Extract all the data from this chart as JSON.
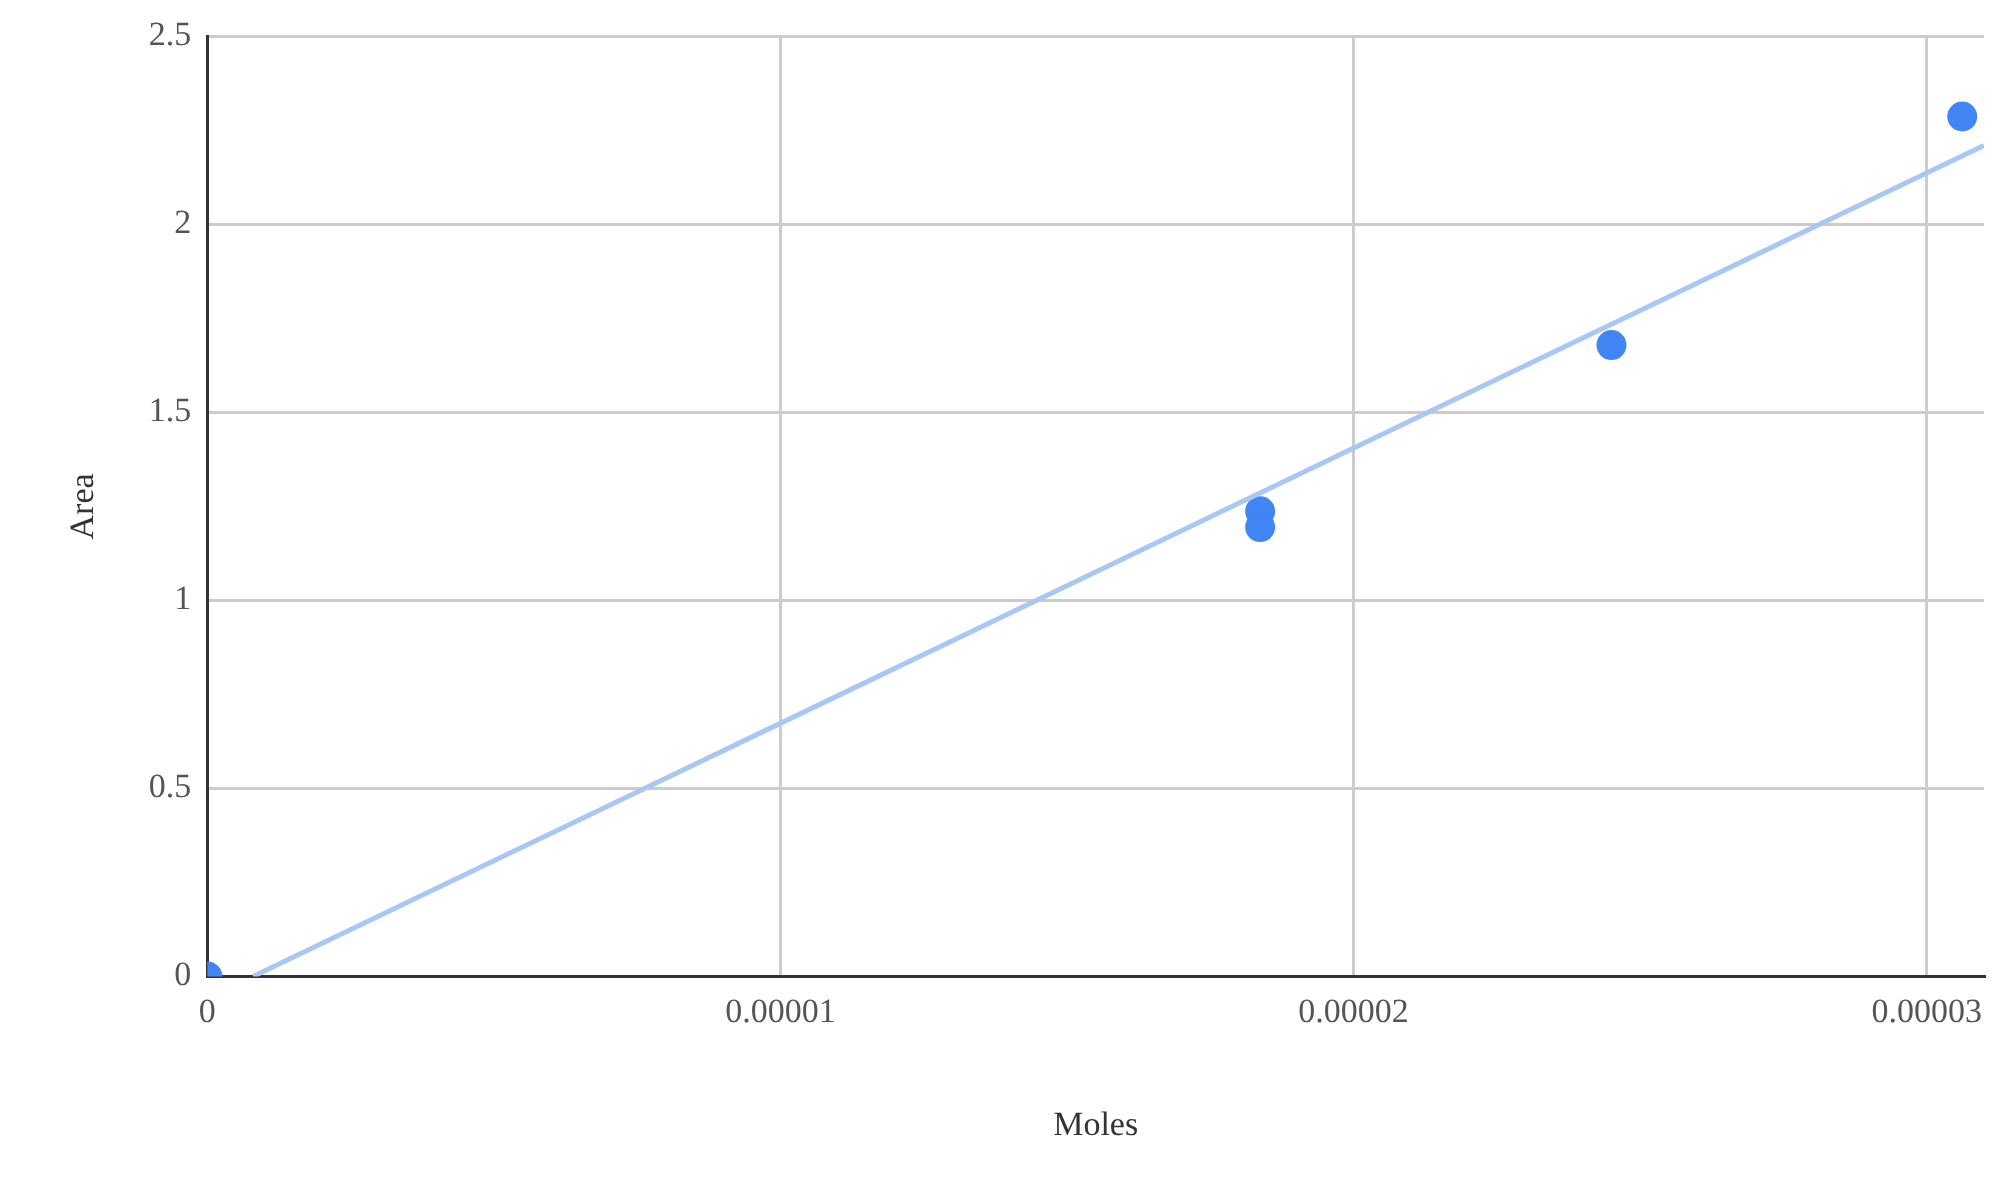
{
  "chart_data": {
    "type": "scatter",
    "xlabel": "Moles",
    "ylabel": "Area",
    "xlim": [
      0,
      3.1e-05
    ],
    "xticks": [
      0,
      {
        "value": 1e-05,
        "label": "0.00001"
      },
      {
        "value": 2e-05,
        "label": "0.00002"
      },
      {
        "value": 3e-05,
        "label": "0.00003"
      }
    ],
    "ylim": [
      0,
      2.5
    ],
    "yticks": [
      0,
      0.5,
      1,
      1.5,
      2,
      2.5
    ],
    "grid": true,
    "legend": false,
    "marker": "circle",
    "series": [
      {
        "type": "scatter",
        "color": "#4285f4",
        "x": [
          0,
          1.837e-05,
          1.837e-05,
          2.45e-05,
          3.062e-05
        ],
        "values": [
          0,
          1.237,
          1.195,
          1.679,
          2.287
        ]
      },
      {
        "type": "line",
        "color": "#a8c7f5",
        "marker": "none",
        "line_style": "solid",
        "x": [
          8e-07,
          3.1e-05
        ],
        "values": [
          0,
          2.21
        ]
      }
    ]
  }
}
